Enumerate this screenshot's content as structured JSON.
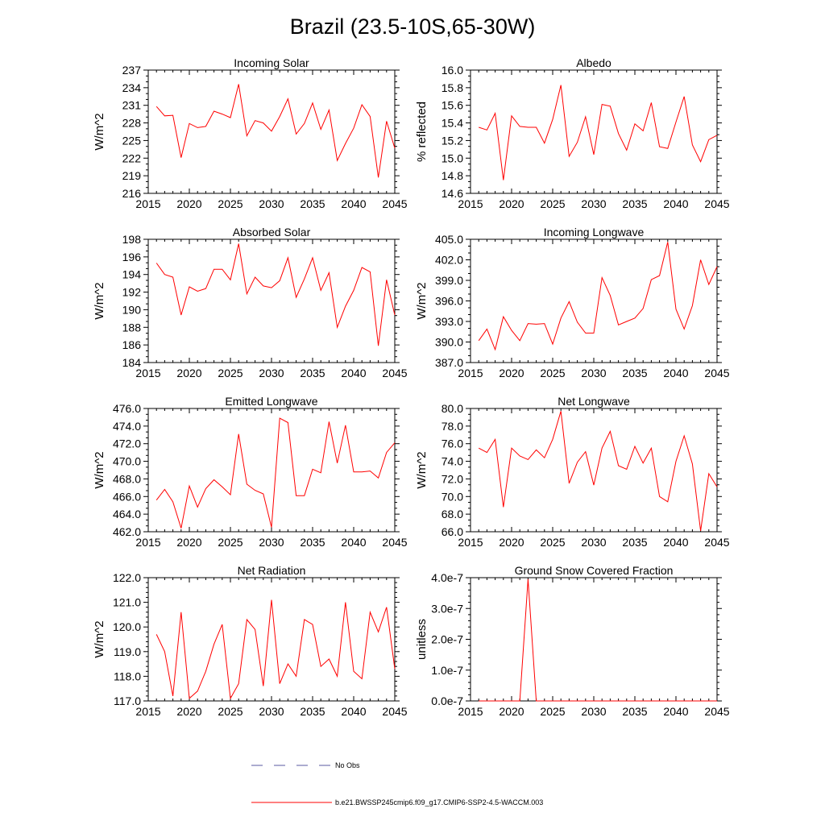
{
  "title": "Brazil (23.5-10S,65-30W)",
  "colors": {
    "series": "#ff0000",
    "obs": "#5a5aa0",
    "axis": "#000000"
  },
  "legend": {
    "obs_label": "No Obs",
    "series_label": "b.e21.BWSSP245cmip6.f09_g17.CMIP6-SSP2-4.5-WACCM.003"
  },
  "chart_data": [
    {
      "type": "line",
      "title": "Incoming Solar",
      "ylabel": "W/m^2",
      "xlim": [
        2015,
        2045
      ],
      "ylim": [
        216,
        237
      ],
      "xticks": [
        "2015",
        "2020",
        "2025",
        "2030",
        "2035",
        "2040",
        "2045"
      ],
      "yticks": [
        "216",
        "219",
        "222",
        "225",
        "228",
        "231",
        "234",
        "237"
      ],
      "x": [
        2016,
        2017,
        2018,
        2019,
        2020,
        2021,
        2022,
        2023,
        2024,
        2025,
        2026,
        2027,
        2028,
        2029,
        2030,
        2031,
        2032,
        2033,
        2034,
        2035,
        2036,
        2037,
        2038,
        2039,
        2040,
        2041,
        2042,
        2043,
        2044,
        2045
      ],
      "values": [
        230.8,
        229.2,
        229.3,
        222.1,
        227.9,
        227.2,
        227.4,
        230.0,
        229.5,
        228.9,
        234.6,
        225.8,
        228.4,
        228.0,
        226.6,
        229.1,
        232.1,
        226.1,
        227.9,
        231.4,
        226.9,
        230.2,
        221.6,
        224.5,
        227.1,
        231.1,
        229.1,
        218.7,
        228.3,
        223.7
      ]
    },
    {
      "type": "line",
      "title": "Albedo",
      "ylabel": "% reflected",
      "xlim": [
        2015,
        2045
      ],
      "ylim": [
        14.6,
        16.0
      ],
      "xticks": [
        "2015",
        "2020",
        "2025",
        "2030",
        "2035",
        "2040",
        "2045"
      ],
      "yticks": [
        "14.6",
        "14.8",
        "15.0",
        "15.2",
        "15.4",
        "15.6",
        "15.8",
        "16.0"
      ],
      "x": [
        2016,
        2017,
        2018,
        2019,
        2020,
        2021,
        2022,
        2023,
        2024,
        2025,
        2026,
        2027,
        2028,
        2029,
        2030,
        2031,
        2032,
        2033,
        2034,
        2035,
        2036,
        2037,
        2038,
        2039,
        2040,
        2041,
        2042,
        2043,
        2044,
        2045
      ],
      "values": [
        15.35,
        15.32,
        15.51,
        14.75,
        15.48,
        15.36,
        15.35,
        15.35,
        15.17,
        15.44,
        15.83,
        15.02,
        15.18,
        15.47,
        15.04,
        15.61,
        15.59,
        15.28,
        15.09,
        15.39,
        15.31,
        15.63,
        15.13,
        15.11,
        15.41,
        15.7,
        15.15,
        14.96,
        15.21,
        15.26
      ]
    },
    {
      "type": "line",
      "title": "Absorbed Solar",
      "ylabel": "W/m^2",
      "xlim": [
        2015,
        2045
      ],
      "ylim": [
        184,
        198
      ],
      "xticks": [
        "2015",
        "2020",
        "2025",
        "2030",
        "2035",
        "2040",
        "2045"
      ],
      "yticks": [
        "184",
        "186",
        "188",
        "190",
        "192",
        "194",
        "196",
        "198"
      ],
      "x": [
        2016,
        2017,
        2018,
        2019,
        2020,
        2021,
        2022,
        2023,
        2024,
        2025,
        2026,
        2027,
        2028,
        2029,
        2030,
        2031,
        2032,
        2033,
        2034,
        2035,
        2036,
        2037,
        2038,
        2039,
        2040,
        2041,
        2042,
        2043,
        2044,
        2045
      ],
      "values": [
        195.3,
        194.0,
        193.7,
        189.4,
        192.6,
        192.1,
        192.4,
        194.6,
        194.6,
        193.4,
        197.5,
        191.8,
        193.7,
        192.7,
        192.5,
        193.3,
        195.9,
        191.4,
        193.5,
        195.9,
        192.2,
        194.2,
        188.0,
        190.4,
        192.2,
        194.8,
        194.3,
        185.9,
        193.4,
        189.4
      ]
    },
    {
      "type": "line",
      "title": "Incoming Longwave",
      "ylabel": "W/m^2",
      "xlim": [
        2015,
        2045
      ],
      "ylim": [
        387.0,
        405.0
      ],
      "xticks": [
        "2015",
        "2020",
        "2025",
        "2030",
        "2035",
        "2040",
        "2045"
      ],
      "yticks": [
        "387.0",
        "390.0",
        "393.0",
        "396.0",
        "399.0",
        "402.0",
        "405.0"
      ],
      "x": [
        2016,
        2017,
        2018,
        2019,
        2020,
        2021,
        2022,
        2023,
        2024,
        2025,
        2026,
        2027,
        2028,
        2029,
        2030,
        2031,
        2032,
        2033,
        2034,
        2035,
        2036,
        2037,
        2038,
        2039,
        2040,
        2041,
        2042,
        2043,
        2044,
        2045
      ],
      "values": [
        390.2,
        391.9,
        388.9,
        393.7,
        391.7,
        390.2,
        392.7,
        392.6,
        392.7,
        389.7,
        393.5,
        395.9,
        392.9,
        391.3,
        391.3,
        399.4,
        396.8,
        392.5,
        393.0,
        393.5,
        394.9,
        399.1,
        399.7,
        404.6,
        394.8,
        391.9,
        395.3,
        402.0,
        398.4,
        401.0
      ]
    },
    {
      "type": "line",
      "title": "Emitted Longwave",
      "ylabel": "W/m^2",
      "xlim": [
        2015,
        2045
      ],
      "ylim": [
        462.0,
        476.0
      ],
      "xticks": [
        "2015",
        "2020",
        "2025",
        "2030",
        "2035",
        "2040",
        "2045"
      ],
      "yticks": [
        "462.0",
        "464.0",
        "466.0",
        "468.0",
        "470.0",
        "472.0",
        "474.0",
        "476.0"
      ],
      "x": [
        2016,
        2017,
        2018,
        2019,
        2020,
        2021,
        2022,
        2023,
        2024,
        2025,
        2026,
        2027,
        2028,
        2029,
        2030,
        2031,
        2032,
        2033,
        2034,
        2035,
        2036,
        2037,
        2038,
        2039,
        2040,
        2041,
        2042,
        2043,
        2044,
        2045
      ],
      "values": [
        465.6,
        466.8,
        465.4,
        462.4,
        467.2,
        464.8,
        466.9,
        467.9,
        467.1,
        466.2,
        473.1,
        467.4,
        466.7,
        466.3,
        462.5,
        474.9,
        474.4,
        466.1,
        466.1,
        469.1,
        468.7,
        474.5,
        469.8,
        474.1,
        468.8,
        468.8,
        468.9,
        468.1,
        471.0,
        472.1
      ]
    },
    {
      "type": "line",
      "title": "Net Longwave",
      "ylabel": "W/m^2",
      "xlim": [
        2015,
        2045
      ],
      "ylim": [
        66.0,
        80.0
      ],
      "xticks": [
        "2015",
        "2020",
        "2025",
        "2030",
        "2035",
        "2040",
        "2045"
      ],
      "yticks": [
        "66.0",
        "68.0",
        "70.0",
        "72.0",
        "74.0",
        "76.0",
        "78.0",
        "80.0"
      ],
      "x": [
        2016,
        2017,
        2018,
        2019,
        2020,
        2021,
        2022,
        2023,
        2024,
        2025,
        2026,
        2027,
        2028,
        2029,
        2030,
        2031,
        2032,
        2033,
        2034,
        2035,
        2036,
        2037,
        2038,
        2039,
        2040,
        2041,
        2042,
        2043,
        2044,
        2045
      ],
      "values": [
        75.5,
        75.0,
        76.5,
        68.8,
        75.5,
        74.6,
        74.2,
        75.3,
        74.4,
        76.5,
        79.7,
        71.5,
        73.9,
        75.1,
        71.3,
        75.5,
        77.4,
        73.5,
        73.1,
        75.7,
        73.8,
        75.5,
        70.0,
        69.4,
        74.0,
        76.9,
        73.7,
        66.1,
        72.6,
        71.1
      ]
    },
    {
      "type": "line",
      "title": "Net Radiation",
      "ylabel": "W/m^2",
      "xlim": [
        2015,
        2045
      ],
      "ylim": [
        117.0,
        122.0
      ],
      "xticks": [
        "2015",
        "2020",
        "2025",
        "2030",
        "2035",
        "2040",
        "2045"
      ],
      "yticks": [
        "117.0",
        "118.0",
        "119.0",
        "120.0",
        "121.0",
        "122.0"
      ],
      "x": [
        2016,
        2017,
        2018,
        2019,
        2020,
        2021,
        2022,
        2023,
        2024,
        2025,
        2026,
        2027,
        2028,
        2029,
        2030,
        2031,
        2032,
        2033,
        2034,
        2035,
        2036,
        2037,
        2038,
        2039,
        2040,
        2041,
        2042,
        2043,
        2044,
        2045
      ],
      "values": [
        119.7,
        119.0,
        117.2,
        120.6,
        117.1,
        117.4,
        118.2,
        119.3,
        120.1,
        117.1,
        117.7,
        120.3,
        119.9,
        117.6,
        121.1,
        117.7,
        118.5,
        118.0,
        120.3,
        120.1,
        118.4,
        118.7,
        118.0,
        121.0,
        118.2,
        117.9,
        120.6,
        119.8,
        120.8,
        118.3
      ]
    },
    {
      "type": "line",
      "title": "Ground Snow Covered Fraction",
      "ylabel": "unitless",
      "xlim": [
        2015,
        2045
      ],
      "ylim": [
        0,
        4e-07
      ],
      "xticks": [
        "2015",
        "2020",
        "2025",
        "2030",
        "2035",
        "2040",
        "2045"
      ],
      "yticks": [
        "0.0e-7",
        "1.0e-7",
        "2.0e-7",
        "3.0e-7",
        "4.0e-7"
      ],
      "x": [
        2016,
        2017,
        2018,
        2019,
        2020,
        2021,
        2022,
        2023,
        2024,
        2025,
        2026,
        2027,
        2028,
        2029,
        2030,
        2031,
        2032,
        2033,
        2034,
        2035,
        2036,
        2037,
        2038,
        2039,
        2040,
        2041,
        2042,
        2043,
        2044,
        2045
      ],
      "values": [
        0,
        0,
        0,
        0,
        0,
        0,
        3.95e-07,
        0,
        0,
        0,
        0,
        0,
        0,
        0,
        0,
        0,
        0,
        0,
        0,
        0,
        0,
        0,
        0,
        0,
        0,
        0,
        0,
        0,
        0,
        0
      ]
    }
  ]
}
